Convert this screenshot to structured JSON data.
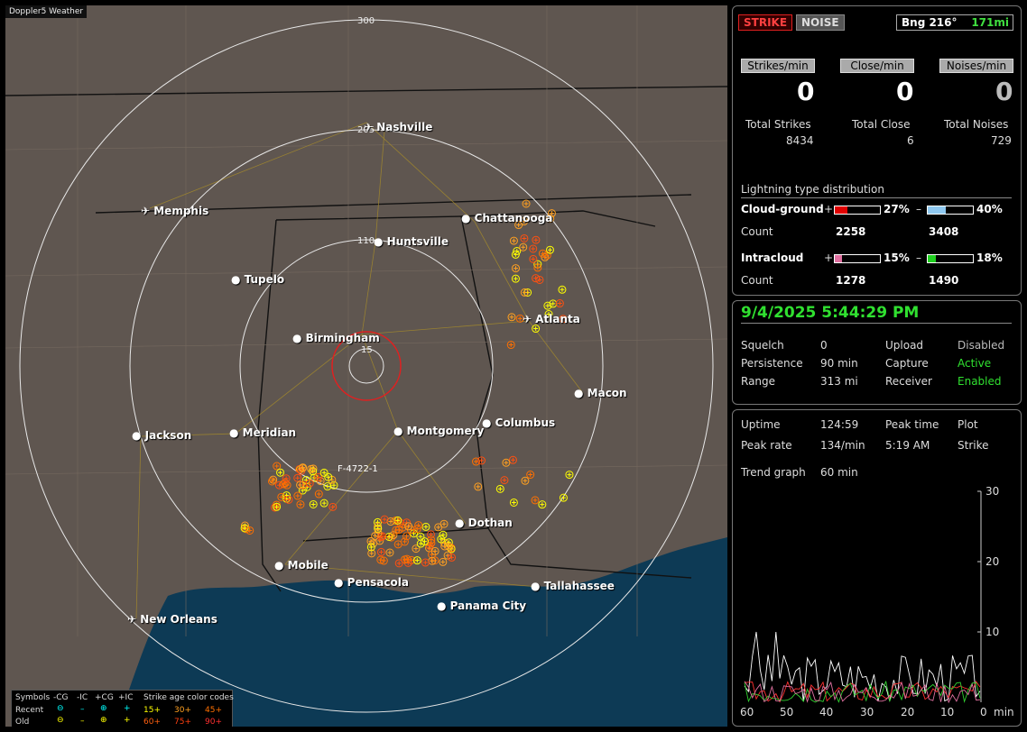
{
  "app_title": "Doppler5 Weather",
  "map": {
    "range_labels": [
      "300",
      "205",
      "110",
      "15"
    ],
    "cities": [
      {
        "name": "Nashville",
        "airport": true
      },
      {
        "name": "Memphis",
        "airport": true
      },
      {
        "name": "Chattanooga",
        "airport": false
      },
      {
        "name": "Huntsville",
        "airport": false
      },
      {
        "name": "Tupelo",
        "airport": false
      },
      {
        "name": "Atlanta",
        "airport": true
      },
      {
        "name": "Birmingham",
        "airport": false
      },
      {
        "name": "Macon",
        "airport": false
      },
      {
        "name": "Jackson",
        "airport": false
      },
      {
        "name": "Meridian",
        "airport": false
      },
      {
        "name": "Montgomery",
        "airport": false
      },
      {
        "name": "Columbus",
        "airport": false
      },
      {
        "name": "Dothan",
        "airport": false
      },
      {
        "name": "Mobile",
        "airport": false
      },
      {
        "name": "Pensacola",
        "airport": false
      },
      {
        "name": "Tallahassee",
        "airport": false
      },
      {
        "name": "Panama City",
        "airport": false
      },
      {
        "name": "New Orleans",
        "airport": true
      }
    ],
    "storm_label": "F-4722-1"
  },
  "legend": {
    "title_symbols": "Symbols",
    "cols": [
      "-CG",
      "-IC",
      "+CG",
      "+IC"
    ],
    "age_title": "Strike age color codes",
    "recent_label": "Recent",
    "old_label": "Old",
    "recent_ages": [
      "15+",
      "30+",
      "45+"
    ],
    "old_ages": [
      "60+",
      "75+",
      "90+"
    ]
  },
  "panel1": {
    "strike_btn": "STRIKE",
    "noise_btn": "NOISE",
    "bearing_label": "Bng 216°",
    "distance": "171mi",
    "rate_headers": [
      "Strikes/min",
      "Close/min",
      "Noises/min"
    ],
    "rates": [
      "0",
      "0",
      "0"
    ],
    "total_labels": [
      "Total Strikes",
      "Total Close",
      "Total Noises"
    ],
    "totals": [
      "8434",
      "6",
      "729"
    ],
    "dist_title": "Lightning type distribution",
    "cg_label": "Cloud-ground",
    "ic_label": "Intracloud",
    "count_label": "Count",
    "plus": "+",
    "minus": "–",
    "cg_pos_pct": "27%",
    "cg_neg_pct": "40%",
    "ic_pos_pct": "15%",
    "ic_neg_pct": "18%",
    "cg_pos_fill": 0.27,
    "cg_neg_fill": 0.4,
    "ic_pos_fill": 0.15,
    "ic_neg_fill": 0.18,
    "cg_pos_count": "2258",
    "cg_neg_count": "3408",
    "ic_pos_count": "1278",
    "ic_neg_count": "1490",
    "colors": {
      "cg_pos": "#e00000",
      "cg_neg": "#8fc8f0",
      "ic_pos": "#e070a0",
      "ic_neg": "#20d020"
    }
  },
  "panel2": {
    "datetime": "9/4/2025 5:44:29 PM",
    "rows": [
      {
        "k1": "Squelch",
        "v1": "0",
        "k2": "Upload",
        "v2": "Disabled"
      },
      {
        "k1": "Persistence",
        "v1": "90 min",
        "k2": "Capture",
        "v2": "Active"
      },
      {
        "k1": "Range",
        "v1": "313 mi",
        "k2": "Receiver",
        "v2": "Enabled"
      }
    ]
  },
  "panel3": {
    "uptime_label": "Uptime",
    "uptime": "124:59",
    "peak_time_label": "Peak time",
    "plot_label": "Plot",
    "peak_rate_label": "Peak rate",
    "peak_rate": "134/min",
    "peak_time": "5:19 AM",
    "plot_value": "Strike",
    "trend_label": "Trend graph",
    "trend_value": "60 min",
    "y_ticks": [
      "30",
      "20",
      "10"
    ],
    "x_ticks": [
      "60",
      "50",
      "40",
      "30",
      "20",
      "10",
      "0",
      "min"
    ]
  }
}
